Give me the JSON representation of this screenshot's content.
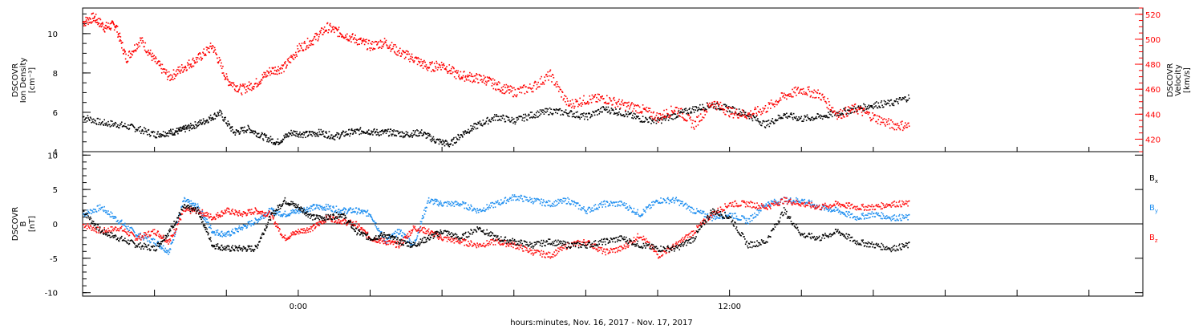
{
  "colors": {
    "density": "#000000",
    "velocity": "#ff0000",
    "bx": "#000000",
    "by": "#1f8ff0",
    "bz": "#ff1010",
    "axis": "#000000"
  },
  "xaxis": {
    "title": "hours:minutes, Nov. 16, 2017 - Nov. 17, 2017",
    "range_hours": [
      -6,
      23.5
    ],
    "tick_labels": [
      {
        "text": "0:00",
        "hour": 0
      },
      {
        "text": "12:00",
        "hour": 12
      }
    ],
    "major_tick_hours": [
      -6,
      -4,
      -2,
      0,
      2,
      4,
      6,
      8,
      10,
      12,
      14,
      16,
      18,
      20,
      22
    ]
  },
  "panel_top": {
    "left_label_lines": [
      "DSCOVR",
      "Ion Density",
      "[cm⁻³]"
    ],
    "right_label_lines": [
      "DSCOVR",
      "Velocity",
      "[km/s]"
    ],
    "left_ticks": [
      "4",
      "6",
      "8",
      "10"
    ],
    "right_ticks": [
      "420",
      "440",
      "460",
      "480",
      "500",
      "520"
    ]
  },
  "panel_bottom": {
    "left_label_lines": [
      "DSCOVR",
      "B",
      "[nT]"
    ],
    "ticks": [
      "-10",
      "-5",
      "0",
      "5",
      "10"
    ],
    "legend": [
      {
        "base": "B",
        "sub": "x"
      },
      {
        "base": "B",
        "sub": "y"
      },
      {
        "base": "B",
        "sub": "z"
      }
    ]
  },
  "chart_data": [
    {
      "type": "scatter",
      "ylim_left": [
        4,
        11.3
      ],
      "ylim_right": [
        410,
        525
      ],
      "series": [
        {
          "name": "Ion Density",
          "axis": "left",
          "x": [
            -6,
            -5.5,
            -5,
            -4.5,
            -4,
            -3.6,
            -3.3,
            -3,
            -2.6,
            -2.2,
            -1.8,
            -1.4,
            -1,
            -0.6,
            -0.2,
            0.2,
            0.6,
            1,
            1.4,
            1.8,
            2.2,
            2.6,
            3,
            3.4,
            3.8,
            4.2,
            4.6,
            5,
            5.5,
            6,
            6.5,
            7,
            7.5,
            8,
            8.5,
            9,
            9.5,
            10,
            10.5,
            11,
            11.5,
            12,
            12.5,
            13,
            13.5,
            14,
            14.5,
            15,
            15.5,
            16,
            16.5,
            17
          ],
          "y": [
            5.8,
            5.5,
            5.4,
            5.2,
            4.9,
            5.0,
            5.1,
            5.3,
            5.6,
            6.0,
            5.0,
            5.2,
            4.8,
            4.5,
            5.0,
            4.9,
            5.0,
            4.8,
            5.0,
            5.1,
            5.0,
            5.0,
            4.9,
            5.0,
            4.6,
            4.4,
            5.0,
            5.4,
            5.8,
            5.6,
            5.9,
            6.1,
            6.0,
            5.8,
            6.2,
            6.0,
            5.7,
            5.6,
            5.9,
            6.2,
            6.4,
            6.2,
            5.9,
            5.4,
            5.9,
            5.7,
            5.8,
            6.0,
            6.2,
            6.4,
            6.5,
            6.8
          ]
        },
        {
          "name": "Velocity",
          "axis": "right",
          "x": [
            -6,
            -5.7,
            -5.4,
            -5.1,
            -4.8,
            -4.4,
            -4,
            -3.6,
            -3.2,
            -2.8,
            -2.4,
            -2,
            -1.6,
            -1.2,
            -0.8,
            -0.4,
            0,
            0.4,
            0.8,
            1.2,
            1.6,
            2,
            2.4,
            2.8,
            3.2,
            3.6,
            4,
            4.4,
            4.8,
            5.2,
            5.6,
            6,
            6.5,
            7,
            7.5,
            8,
            8.5,
            9,
            9.5,
            10,
            10.5,
            11,
            11.5,
            12,
            12.5,
            13,
            13.5,
            14,
            14.5,
            15,
            15.5,
            16,
            16.5,
            17
          ],
          "y": [
            514,
            518,
            510,
            512,
            485,
            500,
            483,
            470,
            478,
            485,
            495,
            468,
            460,
            465,
            475,
            478,
            493,
            500,
            510,
            505,
            500,
            495,
            498,
            490,
            485,
            478,
            480,
            472,
            470,
            468,
            462,
            458,
            462,
            472,
            448,
            452,
            453,
            448,
            445,
            438,
            445,
            432,
            450,
            442,
            440,
            445,
            455,
            460,
            456,
            440,
            445,
            438,
            432,
            431
          ]
        }
      ]
    },
    {
      "type": "scatter",
      "ylim": [
        -10.5,
        10.5
      ],
      "series": [
        {
          "name": "Bx",
          "x": [
            -6,
            -5.5,
            -5,
            -4.5,
            -4,
            -3.6,
            -3.2,
            -2.8,
            -2.4,
            -2,
            -1.6,
            -1.2,
            -0.8,
            -0.4,
            0,
            0.4,
            0.8,
            1.2,
            1.6,
            2,
            2.4,
            2.8,
            3.2,
            3.6,
            4,
            4.5,
            5,
            5.5,
            6,
            6.5,
            7,
            7.5,
            8,
            8.5,
            9,
            9.5,
            10,
            10.5,
            11,
            11.5,
            12,
            12.5,
            13,
            13.5,
            14,
            14.5,
            15,
            15.5,
            16,
            16.5,
            17
          ],
          "y": [
            2.0,
            -1.0,
            -2.0,
            -3.0,
            -3.5,
            -1.0,
            2.5,
            2.0,
            -3.0,
            -3.5,
            -3.5,
            -3.5,
            1.0,
            3.5,
            2.5,
            1.0,
            1.0,
            1.5,
            -1.0,
            -2.0,
            -1.5,
            -2.5,
            -3.0,
            -2.0,
            -1.0,
            -2.0,
            -0.5,
            -2.0,
            -2.5,
            -3.0,
            -2.5,
            -3.0,
            -3.0,
            -2.5,
            -2.0,
            -3.0,
            -3.5,
            -3.5,
            -2.0,
            2.0,
            1.0,
            -3.0,
            -2.5,
            2.0,
            -1.5,
            -2.0,
            -1.0,
            -2.5,
            -3.0,
            -3.5,
            -3.0
          ]
        },
        {
          "name": "By",
          "x": [
            -6,
            -5.5,
            -5,
            -4.5,
            -4,
            -3.6,
            -3.2,
            -2.8,
            -2.4,
            -2,
            -1.6,
            -1.2,
            -0.8,
            -0.4,
            0,
            0.4,
            0.8,
            1.2,
            1.6,
            2,
            2.4,
            2.8,
            3.2,
            3.6,
            4,
            4.5,
            5,
            5.5,
            6,
            6.5,
            7,
            7.5,
            8,
            8.5,
            9,
            9.5,
            10,
            10.5,
            11,
            11.5,
            12,
            12.5,
            13,
            13.5,
            14,
            14.5,
            15,
            15.5,
            16,
            16.5,
            17
          ],
          "y": [
            1.5,
            2.5,
            0.5,
            -1.5,
            -2.5,
            -4.0,
            3.5,
            2.5,
            -1.0,
            -1.5,
            -0.5,
            0.5,
            2.0,
            1.5,
            2.0,
            2.5,
            2.5,
            2.0,
            2.0,
            1.5,
            -2.5,
            -1.0,
            -3.0,
            3.5,
            3.0,
            3.0,
            2.0,
            3.0,
            4.0,
            3.5,
            3.0,
            3.5,
            2.0,
            3.0,
            3.0,
            1.5,
            3.5,
            3.5,
            2.0,
            1.0,
            1.5,
            0.5,
            3.0,
            3.5,
            3.5,
            2.5,
            2.0,
            1.0,
            1.5,
            1.0,
            1.0
          ]
        },
        {
          "name": "Bz",
          "x": [
            -6,
            -5.5,
            -5,
            -4.5,
            -4,
            -3.6,
            -3.2,
            -2.8,
            -2.4,
            -2,
            -1.6,
            -1.2,
            -0.8,
            -0.4,
            0,
            0.4,
            0.8,
            1.2,
            1.6,
            2,
            2.4,
            2.8,
            3.2,
            3.6,
            4,
            4.5,
            5,
            5.5,
            6,
            6.5,
            7,
            7.5,
            8,
            8.5,
            9,
            9.5,
            10,
            10.5,
            11,
            11.5,
            12,
            12.5,
            13,
            13.5,
            14,
            14.5,
            15,
            15.5,
            16,
            16.5,
            17
          ],
          "y": [
            0.0,
            -1.0,
            -0.5,
            -2.0,
            -1.0,
            -2.5,
            2.0,
            2.0,
            1.0,
            2.0,
            1.5,
            2.0,
            1.5,
            -2.0,
            -1.0,
            -0.5,
            1.0,
            0.5,
            0.0,
            -2.0,
            -2.5,
            -3.0,
            -0.5,
            -1.0,
            -2.0,
            -2.5,
            -3.0,
            -2.5,
            -3.0,
            -4.0,
            -4.5,
            -3.0,
            -2.5,
            -4.0,
            -3.5,
            -1.5,
            -4.5,
            -3.0,
            -1.0,
            1.5,
            3.0,
            3.0,
            2.5,
            3.5,
            3.0,
            2.5,
            3.0,
            2.5,
            2.5,
            3.0,
            3.0
          ]
        }
      ]
    }
  ]
}
